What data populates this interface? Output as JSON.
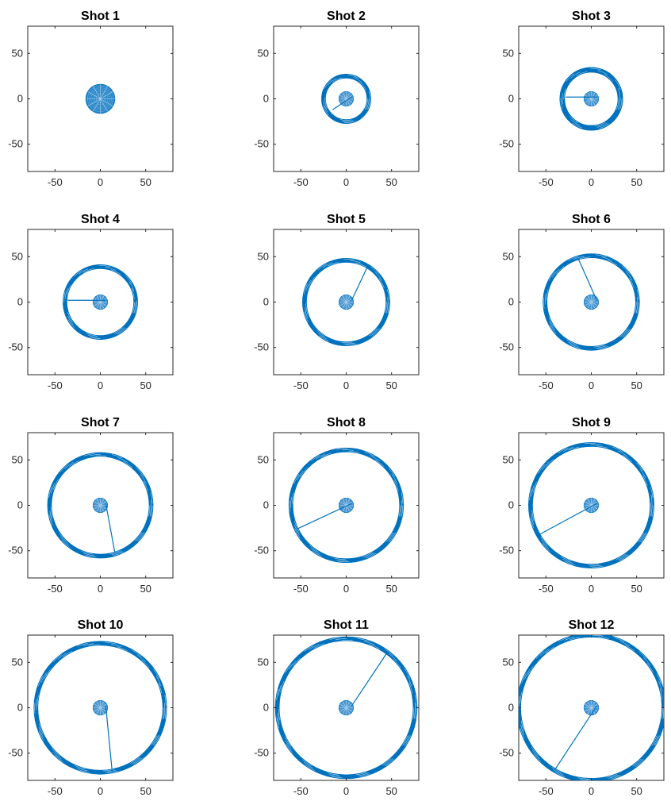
{
  "figure": {
    "background": "#ffffff"
  },
  "chart_data": [
    {
      "type": "line",
      "title": "Shot 1",
      "color": "#0072BD",
      "xlim": [
        -80,
        80
      ],
      "ylim": [
        -80,
        80
      ],
      "xticks": [
        "-50",
        "0",
        "50"
      ],
      "yticks": [
        "50",
        "0",
        "-50"
      ],
      "inner_radius": 16,
      "outer_radius": null,
      "ring_thickness": 0,
      "connector_to": null
    },
    {
      "type": "line",
      "title": "Shot 2",
      "color": "#0072BD",
      "xlim": [
        -80,
        80
      ],
      "ylim": [
        -80,
        80
      ],
      "xticks": [
        "-50",
        "0",
        "50"
      ],
      "yticks": [
        "50",
        "0",
        "-50"
      ],
      "inner_radius": 8,
      "outer_radius": 25,
      "ring_thickness": 5,
      "connector_to": [
        -15,
        -12
      ]
    },
    {
      "type": "line",
      "title": "Shot 3",
      "color": "#0072BD",
      "xlim": [
        -80,
        80
      ],
      "ylim": [
        -80,
        80
      ],
      "xticks": [
        "-50",
        "0",
        "50"
      ],
      "yticks": [
        "50",
        "0",
        "-50"
      ],
      "inner_radius": 8,
      "outer_radius": 32,
      "ring_thickness": 6,
      "connector_to": [
        -28,
        2
      ]
    },
    {
      "type": "line",
      "title": "Shot 4",
      "color": "#0072BD",
      "xlim": [
        -80,
        80
      ],
      "ylim": [
        -80,
        80
      ],
      "xticks": [
        "-50",
        "0",
        "50"
      ],
      "yticks": [
        "50",
        "0",
        "-50"
      ],
      "inner_radius": 8,
      "outer_radius": 39,
      "ring_thickness": 5,
      "connector_to": [
        -36,
        2
      ]
    },
    {
      "type": "line",
      "title": "Shot 5",
      "color": "#0072BD",
      "xlim": [
        -80,
        80
      ],
      "ylim": [
        -80,
        80
      ],
      "xticks": [
        "-50",
        "0",
        "50"
      ],
      "yticks": [
        "50",
        "0",
        "-50"
      ],
      "inner_radius": 8,
      "outer_radius": 46,
      "ring_thickness": 5,
      "connector_to": [
        23,
        38
      ]
    },
    {
      "type": "line",
      "title": "Shot 6",
      "color": "#0072BD",
      "xlim": [
        -80,
        80
      ],
      "ylim": [
        -80,
        80
      ],
      "xticks": [
        "-50",
        "0",
        "50"
      ],
      "yticks": [
        "50",
        "0",
        "-50"
      ],
      "inner_radius": 8,
      "outer_radius": 51,
      "ring_thickness": 5,
      "connector_to": [
        -14,
        47
      ]
    },
    {
      "type": "line",
      "title": "Shot 7",
      "color": "#0072BD",
      "xlim": [
        -80,
        80
      ],
      "ylim": [
        -80,
        80
      ],
      "xticks": [
        "-50",
        "0",
        "50"
      ],
      "yticks": [
        "50",
        "0",
        "-50"
      ],
      "inner_radius": 8,
      "outer_radius": 56,
      "ring_thickness": 5,
      "connector_to": [
        16,
        -52
      ]
    },
    {
      "type": "line",
      "title": "Shot 8",
      "color": "#0072BD",
      "xlim": [
        -80,
        80
      ],
      "ylim": [
        -80,
        80
      ],
      "xticks": [
        "-50",
        "0",
        "50"
      ],
      "yticks": [
        "50",
        "0",
        "-50"
      ],
      "inner_radius": 8,
      "outer_radius": 61,
      "ring_thickness": 5,
      "connector_to": [
        -54,
        -26
      ]
    },
    {
      "type": "line",
      "title": "Shot 9",
      "color": "#0072BD",
      "xlim": [
        -80,
        80
      ],
      "ylim": [
        -80,
        80
      ],
      "xticks": [
        "-50",
        "0",
        "50"
      ],
      "yticks": [
        "50",
        "0",
        "-50"
      ],
      "inner_radius": 8,
      "outer_radius": 67,
      "ring_thickness": 5,
      "connector_to": [
        -57,
        -32
      ]
    },
    {
      "type": "line",
      "title": "Shot 10",
      "color": "#0072BD",
      "xlim": [
        -80,
        80
      ],
      "ylim": [
        -80,
        80
      ],
      "xticks": [
        "-50",
        "0",
        "50"
      ],
      "yticks": [
        "50",
        "0",
        "-50"
      ],
      "inner_radius": 8,
      "outer_radius": 71,
      "ring_thickness": 5,
      "connector_to": [
        13,
        -70
      ]
    },
    {
      "type": "line",
      "title": "Shot 11",
      "color": "#0072BD",
      "xlim": [
        -80,
        80
      ],
      "ylim": [
        -80,
        80
      ],
      "xticks": [
        "-50",
        "0",
        "50"
      ],
      "yticks": [
        "50",
        "0",
        "-50"
      ],
      "inner_radius": 8,
      "outer_radius": 76,
      "ring_thickness": 5,
      "connector_to": [
        44,
        59
      ]
    },
    {
      "type": "line",
      "title": "Shot 12",
      "color": "#0072BD",
      "xlim": [
        -80,
        80
      ],
      "ylim": [
        -80,
        80
      ],
      "xticks": [
        "-50",
        "0",
        "50"
      ],
      "yticks": [
        "50",
        "0",
        "-50"
      ],
      "inner_radius": 8,
      "outer_radius": 80,
      "ring_thickness": 5,
      "connector_to": [
        -40,
        -68
      ]
    }
  ]
}
